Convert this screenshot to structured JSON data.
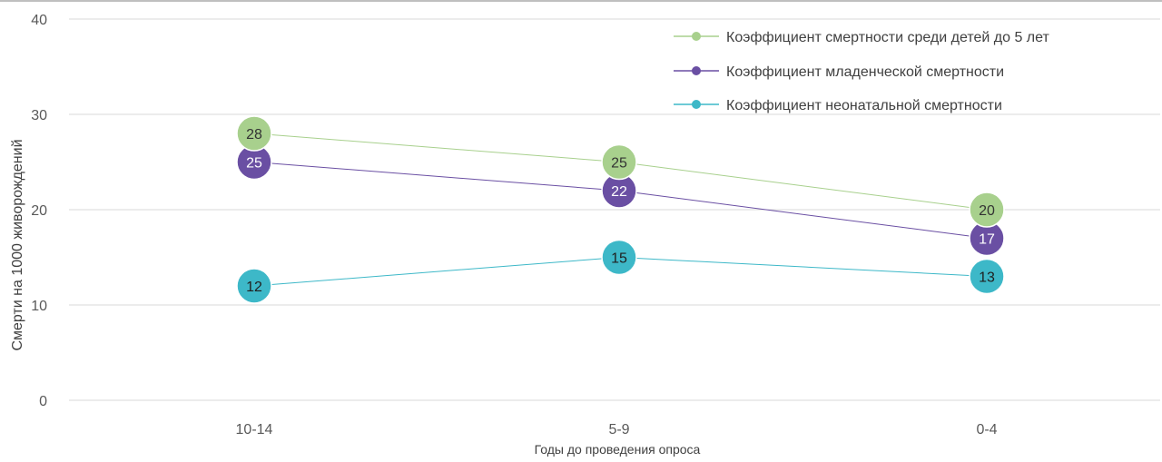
{
  "chart_data": {
    "type": "line",
    "title": "",
    "xlabel": "Годы до проведения  опроса",
    "ylabel": "Смерти на 1000 живорождений",
    "categories": [
      "10-14",
      "5-9",
      "0-4"
    ],
    "ylim": [
      0,
      40
    ],
    "yticks": [
      0,
      10,
      20,
      30,
      40
    ],
    "grid": true,
    "legend_position": "top-right",
    "series": [
      {
        "name": "Коэффициент  смертности среди детей до 5 лет",
        "values": [
          28,
          25,
          20
        ],
        "color": "#a8d08d"
      },
      {
        "name": "Коэффициент младенческой смертности",
        "values": [
          25,
          22,
          17
        ],
        "color": "#6a4fa3"
      },
      {
        "name": "Коэффициент неонатальной смертности",
        "values": [
          12,
          15,
          13
        ],
        "color": "#3db8c8"
      }
    ]
  }
}
